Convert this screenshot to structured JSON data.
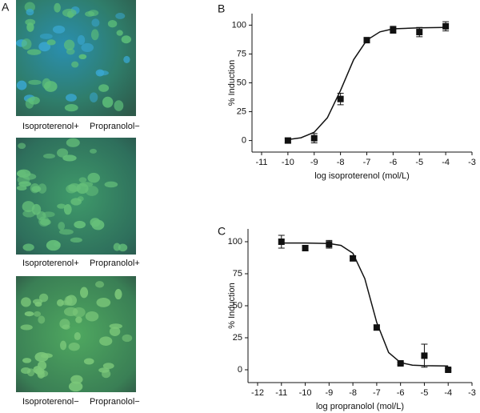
{
  "figure": {
    "panel_labels": [
      "A",
      "B",
      "C"
    ],
    "images": [
      {
        "caption_left": "Isoproterenol+",
        "caption_right": "Propranolol−"
      },
      {
        "caption_left": "Isoproterenol+",
        "caption_right": "Propranolol+"
      },
      {
        "caption_left": "Isoproterenol−",
        "caption_right": "Propranolol−"
      }
    ]
  },
  "chart_data": [
    {
      "type": "scatter",
      "xlabel": "log isoproterenol (mol/L)",
      "ylabel": "% Induction",
      "x": [
        -10,
        -9,
        -8,
        -7,
        -6,
        -5,
        -4
      ],
      "values": [
        0,
        2,
        36,
        87,
        96,
        94,
        99
      ],
      "errors": [
        2,
        4,
        5,
        2,
        3,
        4,
        4
      ],
      "curve": {
        "x": [
          -10,
          -9.5,
          -9,
          -8.5,
          -8,
          -7.5,
          -7,
          -6.5,
          -6,
          -5,
          -4
        ],
        "values": [
          0.8,
          2.4,
          7.2,
          19.7,
          43.4,
          70.1,
          87,
          94.2,
          96.8,
          97.7,
          98
        ]
      },
      "color": "#111111",
      "xlim": [
        -11,
        -3
      ],
      "ylim": [
        -10,
        110
      ],
      "xticks": [
        -11,
        -10,
        -9,
        -8,
        -7,
        -6,
        -5,
        -4,
        -3
      ],
      "yticks": [
        0,
        25,
        50,
        75,
        100
      ]
    },
    {
      "type": "scatter",
      "xlabel": "log propranolol  (mol/L)",
      "ylabel": "% Induction",
      "x": [
        -11,
        -10,
        -9,
        -8,
        -7,
        -6,
        -5,
        -4
      ],
      "values": [
        100,
        95,
        98,
        87,
        33,
        5,
        11,
        0
      ],
      "errors": [
        5,
        2,
        3,
        2,
        2,
        1,
        9,
        1
      ],
      "curve": {
        "x": [
          -11,
          -10,
          -9,
          -8.5,
          -8,
          -7.5,
          -7,
          -6.5,
          -6,
          -5.5,
          -5,
          -4
        ],
        "values": [
          99,
          99,
          98.6,
          97.1,
          91,
          71.2,
          37,
          13.5,
          5.6,
          3.6,
          3.2,
          3
        ]
      },
      "color": "#111111",
      "xlim": [
        -12,
        -3
      ],
      "ylim": [
        -10,
        110
      ],
      "xticks": [
        -12,
        -11,
        -10,
        -9,
        -8,
        -7,
        -6,
        -5,
        -4,
        -3
      ],
      "yticks": [
        0,
        25,
        50,
        75,
        100
      ]
    }
  ]
}
